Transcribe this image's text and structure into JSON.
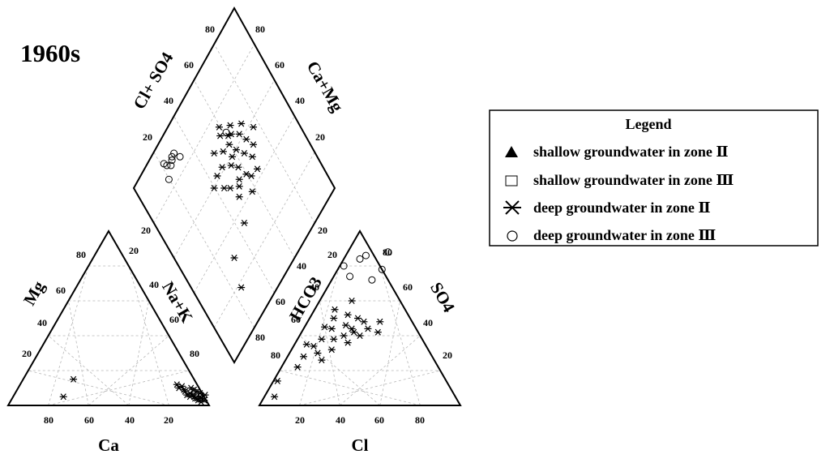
{
  "chart_data": {
    "type": "scatter",
    "subtype": "piper-trilinear",
    "title": "1960s",
    "cation_triangle": {
      "left_label": "Mg",
      "right_label": "Na+K",
      "bottom_label": "Ca",
      "left_ticks": [
        "20",
        "40",
        "60",
        "80"
      ],
      "right_ticks": [
        "20",
        "40",
        "60",
        "80"
      ],
      "bottom_ticks": [
        "80",
        "60",
        "40",
        "20"
      ]
    },
    "anion_triangle": {
      "left_label": "HCO3",
      "right_label": "SO4",
      "bottom_label": "Cl",
      "left_ticks": [
        "80",
        "60",
        "40",
        "20"
      ],
      "right_ticks": [
        "80",
        "60",
        "40",
        "20"
      ],
      "bottom_ticks": [
        "20",
        "40",
        "60",
        "80"
      ]
    },
    "diamond": {
      "left_label": "Cl+ SO4",
      "right_label": "Ca+Mg",
      "left_ticks_upper": [
        "20",
        "40",
        "60",
        "80"
      ],
      "right_ticks_upper": [
        "80",
        "60",
        "40",
        "20"
      ],
      "left_ticks_lower": [
        "20"
      ],
      "right_ticks_lower": [
        "20",
        "40",
        "60",
        "80"
      ]
    },
    "legend": {
      "title": "Legend",
      "placement": "right",
      "items": [
        {
          "marker": "filled-triangle",
          "label": "shallow groundwater in zone Ⅱ"
        },
        {
          "marker": "square",
          "label": "shallow groundwater in zone Ⅲ"
        },
        {
          "marker": "asterisk",
          "label": "deep groundwater in zone Ⅱ"
        },
        {
          "marker": "circle",
          "label": "deep groundwater in zone Ⅲ"
        }
      ]
    },
    "series": [
      {
        "name": "deep groundwater in zone Ⅱ",
        "marker": "asterisk",
        "cations_pct": [
          [
            5,
            25
          ],
          [
            15,
            25
          ],
          [
            10,
            80
          ],
          [
            8,
            84
          ],
          [
            12,
            78
          ],
          [
            6,
            86
          ],
          [
            9,
            88
          ],
          [
            5,
            90
          ],
          [
            7,
            92
          ],
          [
            4,
            94
          ],
          [
            6,
            95
          ],
          [
            3,
            96
          ],
          [
            8,
            90
          ],
          [
            10,
            86
          ],
          [
            5,
            88
          ],
          [
            4,
            91
          ],
          [
            3,
            93
          ],
          [
            6,
            89
          ],
          [
            7,
            87
          ],
          [
            2,
            95
          ],
          [
            9,
            83
          ],
          [
            11,
            81
          ],
          [
            4,
            92
          ],
          [
            5,
            93
          ]
        ],
        "anions_pct": [
          [
            5,
            5
          ],
          [
            14,
            2
          ],
          [
            22,
            8
          ],
          [
            28,
            8
          ],
          [
            30,
            14
          ],
          [
            34,
            10
          ],
          [
            38,
            18
          ],
          [
            40,
            22
          ],
          [
            42,
            26
          ],
          [
            44,
            24
          ],
          [
            46,
            20
          ],
          [
            48,
            28
          ],
          [
            50,
            24
          ],
          [
            44,
            32
          ],
          [
            42,
            38
          ],
          [
            48,
            36
          ],
          [
            40,
            30
          ],
          [
            36,
            26
          ],
          [
            38,
            12
          ],
          [
            44,
            14
          ],
          [
            50,
            12
          ],
          [
            55,
            10
          ],
          [
            60,
            16
          ],
          [
            32,
            20
          ],
          [
            26,
            18
          ],
          [
            35,
            6
          ],
          [
            45,
            10
          ],
          [
            52,
            18
          ]
        ],
        "diamond_pct": [
          [
            18,
            25
          ],
          [
            30,
            30
          ],
          [
            45,
            50
          ],
          [
            50,
            55
          ],
          [
            55,
            45
          ],
          [
            60,
            40
          ],
          [
            62,
            50
          ],
          [
            65,
            60
          ],
          [
            58,
            55
          ],
          [
            52,
            48
          ],
          [
            48,
            60
          ],
          [
            60,
            62
          ],
          [
            66,
            55
          ],
          [
            70,
            50
          ],
          [
            68,
            62
          ],
          [
            72,
            58
          ],
          [
            55,
            65
          ],
          [
            63,
            68
          ],
          [
            58,
            70
          ],
          [
            50,
            68
          ],
          [
            45,
            62
          ],
          [
            40,
            58
          ],
          [
            65,
            72
          ],
          [
            70,
            66
          ],
          [
            75,
            60
          ],
          [
            62,
            45
          ],
          [
            54,
            58
          ],
          [
            48,
            53
          ],
          [
            60,
            58
          ],
          [
            67,
            64
          ],
          [
            53,
            72
          ],
          [
            44,
            67
          ],
          [
            58,
            77
          ],
          [
            35,
            45
          ]
        ]
      },
      {
        "name": "deep groundwater in zone Ⅲ",
        "marker": "circle",
        "cations_pct": [],
        "anions_pct": [
          [
            72,
            20
          ],
          [
            78,
            22
          ],
          [
            84,
            8
          ],
          [
            86,
            10
          ],
          [
            74,
            8
          ],
          [
            88,
            20
          ],
          [
            80,
            2
          ]
        ],
        "diamond_pct": [
          [
            85,
            20
          ],
          [
            88,
            25
          ],
          [
            90,
            23
          ],
          [
            92,
            22
          ],
          [
            90,
            28
          ],
          [
            86,
            32
          ],
          [
            90,
            30
          ],
          [
            89,
            27
          ],
          [
            70,
            62
          ]
        ]
      }
    ]
  }
}
